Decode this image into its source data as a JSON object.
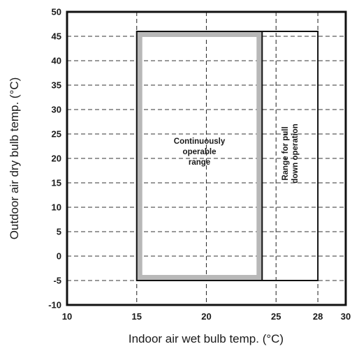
{
  "chart_data": {
    "type": "area",
    "xlabel": "Indoor air wet bulb temp. (°C)",
    "ylabel": "Outdoor air dry bulb temp. (°C)",
    "xlim": [
      10,
      30
    ],
    "ylim": [
      -10,
      50
    ],
    "x_ticks": [
      "10",
      "15",
      "20",
      "25",
      "28",
      "30"
    ],
    "x_tick_values": [
      10,
      15,
      20,
      25,
      28,
      30
    ],
    "y_ticks": [
      "50",
      "45",
      "40",
      "35",
      "30",
      "25",
      "20",
      "15",
      "10",
      "5",
      "0",
      "-5",
      "-10"
    ],
    "y_tick_values": [
      50,
      45,
      40,
      35,
      30,
      25,
      20,
      15,
      10,
      5,
      0,
      -5,
      -10
    ],
    "grid": true,
    "grid_style": "dashed",
    "regions": [
      {
        "label_lines": [
          "Continuously",
          "operable",
          "range"
        ],
        "x": [
          15,
          24
        ],
        "y": [
          -5,
          46
        ],
        "style": "gray-hatched-border"
      },
      {
        "label_lines": [
          "Range for pull",
          "down operation"
        ],
        "x": [
          24,
          28
        ],
        "y": [
          -5,
          46
        ],
        "style": "black-outline",
        "label_orientation": "vertical"
      }
    ],
    "colors": {
      "continuous_border": "#b8b8b8",
      "lines": "#111111"
    }
  }
}
